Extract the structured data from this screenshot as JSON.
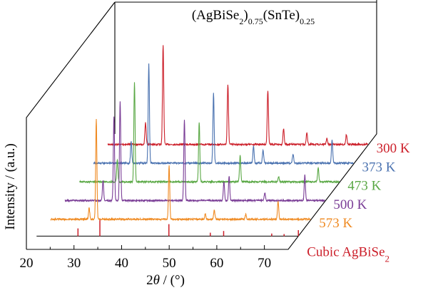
{
  "chart_data": {
    "type": "line",
    "title": {
      "parts": [
        {
          "text": "(AgBiSe",
          "style": "normal"
        },
        {
          "text": "2",
          "style": "sub"
        },
        {
          "text": ")",
          "style": "normal"
        },
        {
          "text": "0.75",
          "style": "sub"
        },
        {
          "text": "(SnTe)",
          "style": "normal"
        },
        {
          "text": "0.25",
          "style": "sub"
        }
      ]
    },
    "xlabel": {
      "parts": [
        {
          "text": "2",
          "style": "normal"
        },
        {
          "text": "θ",
          "style": "italic"
        },
        {
          "text": " / (°)",
          "style": "normal"
        }
      ]
    },
    "ylabel": "Intensity / (a.u.)",
    "xlim": [
      20,
      75
    ],
    "xticks": [
      20,
      30,
      40,
      50,
      60,
      70
    ],
    "grid": false,
    "series": [
      {
        "name": "300 K",
        "color": "#cc1f2a",
        "peaks": [
          {
            "x": 28.3,
            "h": 0.22
          },
          {
            "x": 32.0,
            "h": 1.0
          },
          {
            "x": 45.6,
            "h": 0.6
          },
          {
            "x": 54.0,
            "h": 0.54
          },
          {
            "x": 57.3,
            "h": 0.16
          },
          {
            "x": 62.2,
            "h": 0.12
          },
          {
            "x": 66.4,
            "h": 0.06
          },
          {
            "x": 70.5,
            "h": 0.1
          }
        ]
      },
      {
        "name": "373 K",
        "color": "#4a72b0",
        "peaks": [
          {
            "x": 28.3,
            "h": 0.22
          },
          {
            "x": 32.0,
            "h": 1.0
          },
          {
            "x": 45.6,
            "h": 0.7
          },
          {
            "x": 54.0,
            "h": 0.17
          },
          {
            "x": 56.0,
            "h": 0.13
          },
          {
            "x": 62.3,
            "h": 0.09
          },
          {
            "x": 70.5,
            "h": 0.24
          }
        ]
      },
      {
        "name": "473 K",
        "color": "#5aa845",
        "peaks": [
          {
            "x": 28.4,
            "h": 0.22
          },
          {
            "x": 32.0,
            "h": 1.0
          },
          {
            "x": 45.6,
            "h": 0.6
          },
          {
            "x": 54.2,
            "h": 0.27
          },
          {
            "x": 62.3,
            "h": 0.05
          },
          {
            "x": 70.6,
            "h": 0.14
          }
        ]
      },
      {
        "name": "500 K",
        "color": "#7a3d96",
        "peaks": [
          {
            "x": 28.4,
            "h": 0.2
          },
          {
            "x": 30.7,
            "h": 0.84
          },
          {
            "x": 32.0,
            "h": 1.0
          },
          {
            "x": 45.5,
            "h": 0.81
          },
          {
            "x": 53.8,
            "h": 0.19
          },
          {
            "x": 54.9,
            "h": 0.25
          },
          {
            "x": 62.4,
            "h": 0.08
          },
          {
            "x": 70.8,
            "h": 0.26
          }
        ]
      },
      {
        "name": "573 K",
        "color": "#ef8a22",
        "peaks": [
          {
            "x": 28.5,
            "h": 0.11
          },
          {
            "x": 30.0,
            "h": 1.0
          },
          {
            "x": 45.3,
            "h": 0.54
          },
          {
            "x": 52.9,
            "h": 0.05
          },
          {
            "x": 54.8,
            "h": 0.09
          },
          {
            "x": 61.4,
            "h": 0.05
          },
          {
            "x": 68.2,
            "h": 0.18
          }
        ]
      }
    ],
    "reference": {
      "name": {
        "parts": [
          {
            "text": "Cubic AgBiSe",
            "style": "normal"
          },
          {
            "text": "2",
            "style": "sub"
          }
        ]
      },
      "color": "#cc1f2a",
      "lines": [
        {
          "x": 28.7,
          "h": 0.45
        },
        {
          "x": 33.3,
          "h": 1.0
        },
        {
          "x": 47.8,
          "h": 0.7
        },
        {
          "x": 56.5,
          "h": 0.2
        },
        {
          "x": 59.3,
          "h": 0.3
        },
        {
          "x": 69.4,
          "h": 0.15
        },
        {
          "x": 72.0,
          "h": 0.12
        },
        {
          "x": 75.0,
          "h": 0.35
        }
      ]
    }
  }
}
